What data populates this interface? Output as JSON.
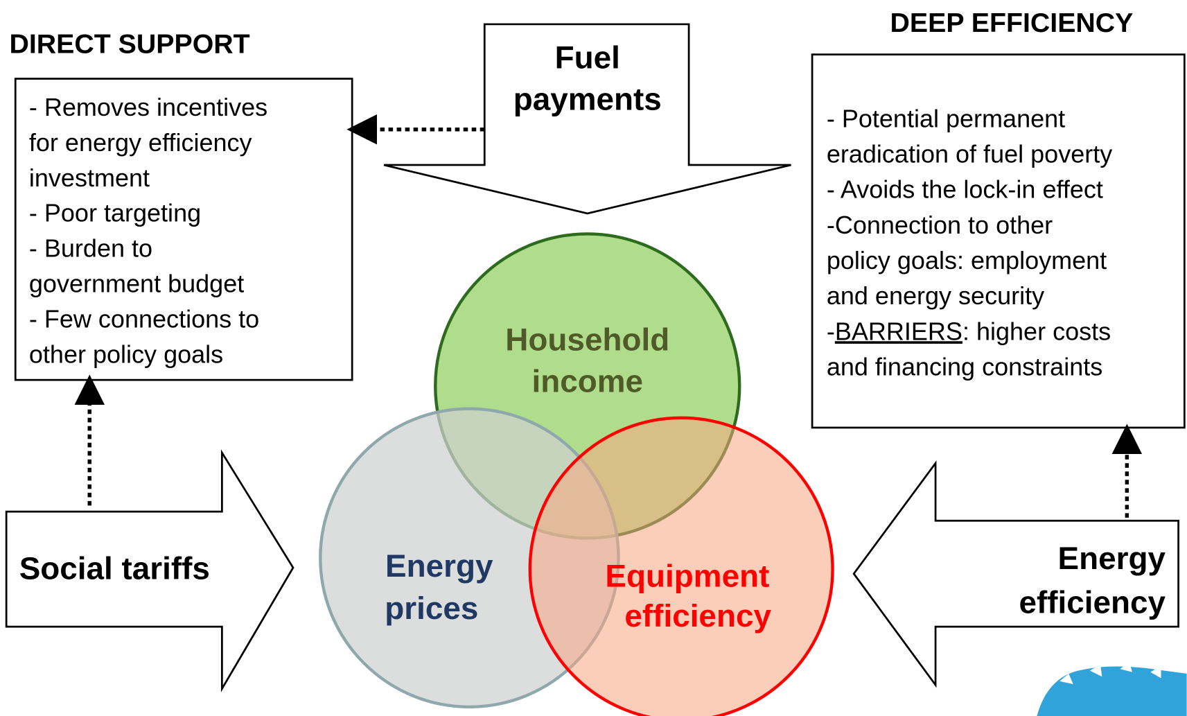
{
  "direct_support": {
    "title": "DIRECT SUPPORT",
    "lines": [
      "- Removes incentives",
      "for energy efficiency",
      "investment",
      "-  Poor targeting",
      "- Burden to",
      "government budget",
      "- Few connections to",
      "other policy goals"
    ]
  },
  "deep_efficiency": {
    "title": "DEEP EFFICIENCY",
    "lines": [
      "- Potential permanent",
      "eradication of fuel poverty",
      "-  Avoids the lock-in effect",
      "-Connection to other",
      "policy goals: employment",
      "and energy security"
    ],
    "barriers": {
      "prefix": "-",
      "underlined": "BARRIERS",
      "rest": ": higher costs"
    },
    "last_line": "and financing constraints"
  },
  "arrows": {
    "fuel_payments": [
      "Fuel",
      "payments"
    ],
    "social_tariffs": "Social tariffs",
    "energy_efficiency": [
      "Energy",
      "efficiency"
    ]
  },
  "circles": {
    "household_income": [
      "Household",
      "income"
    ],
    "energy_prices": [
      "Energy",
      "prices"
    ],
    "equipment_efficiency": [
      "Equipment",
      "efficiency"
    ]
  }
}
